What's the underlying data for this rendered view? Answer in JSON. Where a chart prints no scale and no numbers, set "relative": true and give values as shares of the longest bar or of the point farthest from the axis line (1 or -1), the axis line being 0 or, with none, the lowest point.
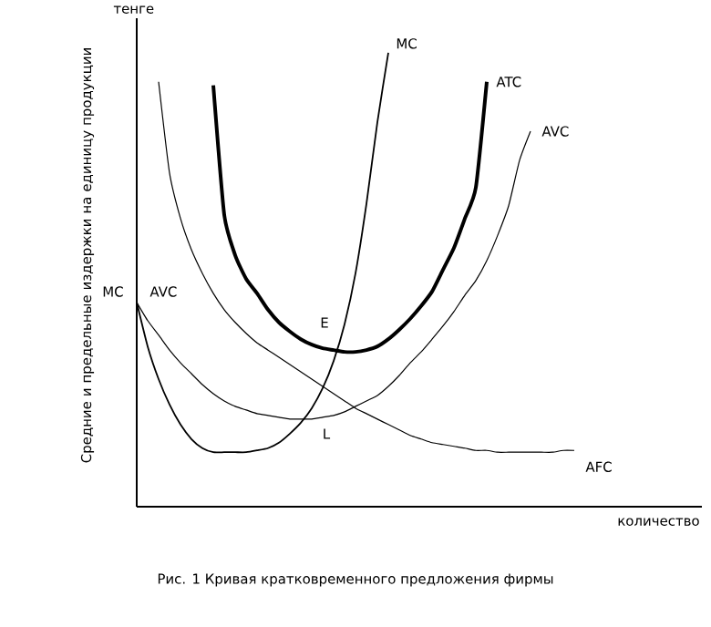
{
  "chart_data": {
    "type": "line",
    "relative": true,
    "title": "Рис. 1  Кривая кратковременного предложения фирмы",
    "xlabel": "количество",
    "ylabel": "Средние и предельные издержки на единицу продукции",
    "annotations": [
      "тенге",
      "MC",
      "AVC",
      "E",
      "L"
    ],
    "categories": [
      null,
      null,
      null,
      null,
      null,
      null,
      null,
      null,
      null,
      null,
      null,
      null,
      null,
      null,
      null,
      null,
      null,
      null,
      null,
      null,
      null,
      null,
      null,
      null,
      null,
      null,
      null,
      null,
      null,
      null,
      null,
      null,
      null,
      null,
      null,
      null,
      null,
      null,
      null,
      null,
      null,
      null,
      null,
      null,
      null,
      null,
      null,
      null,
      null,
      null,
      null
    ],
    "series": [
      {
        "name": "MC",
        "color": "#000000",
        "values": [
          0.45,
          0.353,
          0.281,
          0.225,
          0.181,
          0.149,
          0.129,
          0.12,
          0.12,
          0.12,
          0.12,
          0.124,
          0.129,
          0.141,
          0.161,
          0.185,
          0.217,
          0.261,
          0.321,
          0.402,
          0.514,
          0.667,
          0.847,
          1.0,
          null,
          null,
          null,
          null,
          null,
          null,
          null,
          null,
          null,
          null,
          null,
          null,
          null,
          null,
          null,
          null,
          null,
          null,
          null,
          null,
          null,
          null,
          null,
          null,
          null,
          null,
          null
        ]
      },
      {
        "name": "ATC",
        "color": "#000000",
        "values": [
          null,
          null,
          null,
          null,
          null,
          null,
          null,
          0.928,
          0.643,
          0.554,
          0.502,
          0.47,
          0.434,
          0.406,
          0.386,
          0.369,
          0.357,
          0.349,
          0.345,
          0.341,
          0.341,
          0.345,
          0.353,
          0.369,
          0.39,
          0.414,
          0.442,
          0.474,
          0.522,
          0.57,
          0.635,
          0.703,
          0.936,
          null,
          null,
          null,
          null,
          null,
          null,
          null,
          null,
          null,
          null,
          null,
          null,
          null,
          null,
          null,
          null,
          null,
          null
        ]
      },
      {
        "name": "AVC",
        "color": "#000000",
        "values": [
          0.45,
          0.41,
          0.378,
          0.345,
          0.317,
          0.293,
          0.269,
          0.249,
          0.233,
          0.221,
          0.213,
          0.205,
          0.201,
          0.197,
          0.193,
          0.193,
          0.193,
          0.197,
          0.201,
          0.209,
          0.221,
          0.233,
          0.245,
          0.265,
          0.289,
          0.317,
          0.341,
          0.369,
          0.398,
          0.43,
          0.466,
          0.498,
          0.542,
          0.598,
          0.663,
          0.763,
          0.827,
          null,
          null,
          null,
          null,
          null,
          null,
          null,
          null,
          null,
          null,
          null,
          null,
          null,
          null
        ]
      },
      {
        "name": "AFC",
        "color": "#000000",
        "values": [
          null,
          null,
          0.936,
          0.735,
          0.635,
          0.566,
          0.514,
          0.47,
          0.434,
          0.406,
          0.382,
          0.361,
          0.345,
          0.329,
          0.313,
          0.297,
          0.281,
          0.265,
          0.249,
          0.233,
          0.217,
          0.205,
          0.193,
          0.181,
          0.169,
          0.157,
          0.149,
          0.141,
          0.137,
          0.133,
          0.129,
          0.124,
          0.124,
          0.12,
          0.12,
          0.12,
          0.12,
          0.12,
          0.12,
          0.124,
          0.124,
          null,
          null,
          null,
          null,
          null,
          null,
          null,
          null,
          null,
          null
        ]
      }
    ]
  }
}
